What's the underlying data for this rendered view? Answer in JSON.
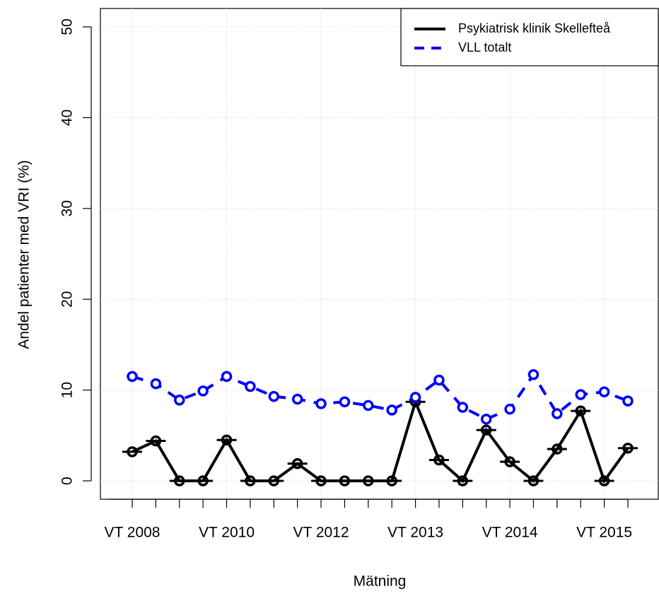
{
  "chart_data": {
    "type": "line",
    "xlabel": "Mätning",
    "ylabel": "Andel patienter med VRI (%)",
    "categories": [
      "VT 2008",
      null,
      null,
      null,
      "VT 2010",
      null,
      null,
      null,
      "VT 2012",
      null,
      null,
      null,
      "VT 2013",
      null,
      null,
      null,
      "VT 2014",
      null,
      null,
      null,
      "VT 2015",
      null
    ],
    "series": [
      {
        "name": "Psykiatrisk klinik Skellefteå",
        "color": "#000000",
        "values": [
          3.2,
          4.4,
          0,
          0,
          4.5,
          0,
          0,
          1.9,
          0,
          0,
          0,
          0,
          8.7,
          2.3,
          0,
          5.6,
          2.1,
          0,
          3.5,
          7.7,
          0,
          3.6
        ]
      },
      {
        "name": "VLL totalt",
        "color": "#0000ff",
        "values": [
          11.5,
          10.7,
          8.9,
          9.9,
          11.5,
          10.4,
          9.3,
          9.0,
          8.5,
          8.7,
          8.3,
          7.8,
          9.2,
          11.1,
          8.1,
          6.8,
          7.9,
          11.7,
          7.4,
          9.5,
          9.8,
          8.8
        ]
      }
    ],
    "ylim": [
      0,
      50
    ],
    "yticks": [
      0,
      10,
      20,
      30,
      40,
      50
    ],
    "grid": true,
    "legend": "top-right"
  }
}
